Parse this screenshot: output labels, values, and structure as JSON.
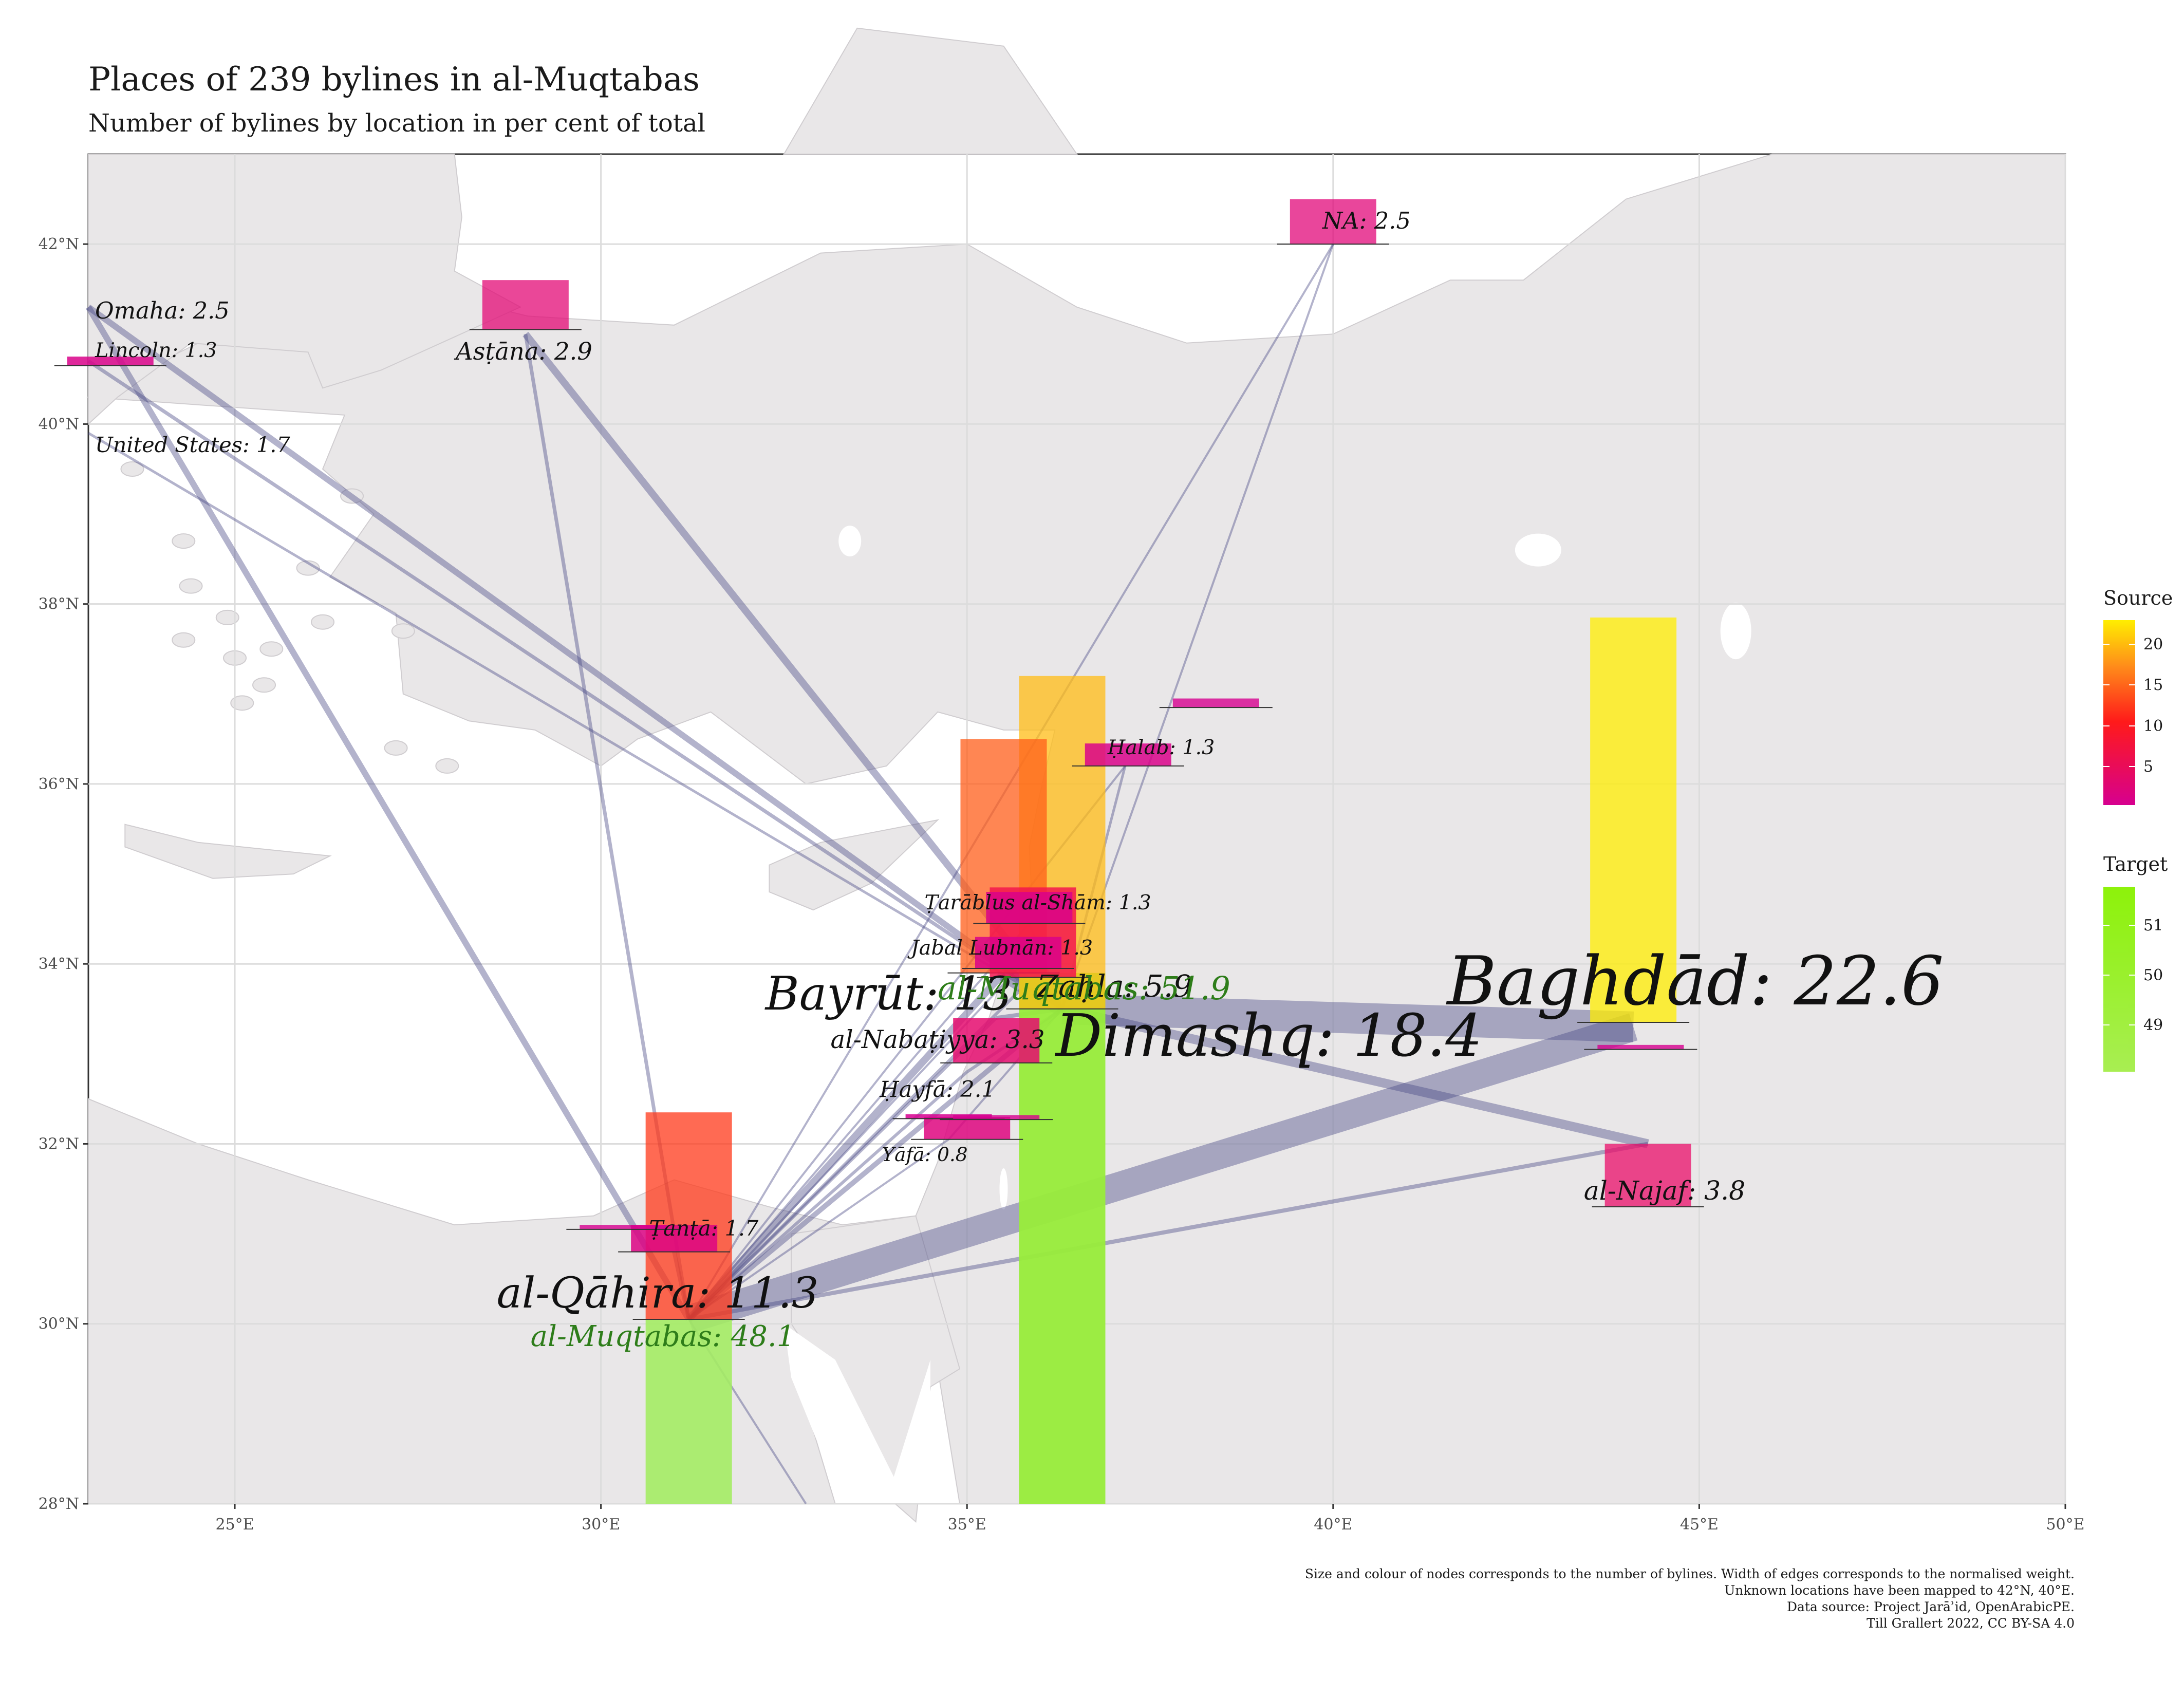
{
  "title": "Places of 239 bylines in al-Muqtabas",
  "subtitle": "Number of bylines by location in per cent of total",
  "caption": [
    "Size and colour of nodes corresponds to the number of bylines. Width of edges corresponds to the normalised weight.",
    "Unknown locations have been mapped to 42°N, 40°E.",
    "Data source: Project Jarāʾid, OpenArabicPE.",
    "Till Grallert 2022, CC BY-SA 4.0"
  ],
  "colors": {
    "land": "#e9e7e8",
    "sea": "#ffffff",
    "edge": "#4b4a86",
    "source_low": "#d6008f",
    "source_mid": "#ff1a1a",
    "source_high": "#ffee00",
    "target": "#8df20a"
  },
  "axes": {
    "x_ticks": [
      "25°E",
      "30°E",
      "35°E",
      "40°E",
      "45°E",
      "50°E"
    ],
    "y_ticks": [
      "28°N",
      "30°N",
      "32°N",
      "34°N",
      "36°N",
      "38°N",
      "40°N",
      "42°N"
    ],
    "xlim": [
      23,
      50
    ],
    "ylim": [
      28,
      43
    ]
  },
  "legend": {
    "source": {
      "title": "Source",
      "ticks": [
        "5",
        "10",
        "15",
        "20"
      ]
    },
    "target": {
      "title": "Target",
      "ticks": [
        "49",
        "50",
        "51"
      ]
    }
  },
  "chart_data": {
    "type": "map",
    "sources": [
      {
        "name": "Baghdād",
        "lon": 44.1,
        "lat": 33.3,
        "value": 22.6,
        "label": "Baghdād: 22.6"
      },
      {
        "name": "Dimashq",
        "lon": 36.3,
        "lat": 33.5,
        "value": 18.4,
        "label": "Dimashq: 18.4"
      },
      {
        "name": "Bayrūt",
        "lon": 35.5,
        "lat": 33.9,
        "value": 13,
        "label": "Bayrūt: 13"
      },
      {
        "name": "al-Qāhira",
        "lon": 31.2,
        "lat": 30.05,
        "value": 11.3,
        "label": "al-Qāhira: 11.3"
      },
      {
        "name": "Zaḥla",
        "lon": 35.9,
        "lat": 33.85,
        "value": 5.9,
        "label": "Zaḥla: 5.9"
      },
      {
        "name": "al-Najaf",
        "lon": 44.3,
        "lat": 32.0,
        "value": 3.8,
        "label": "al-Najaf: 3.8"
      },
      {
        "name": "al-Nabaṭiyya",
        "lon": 35.4,
        "lat": 33.4,
        "value": 3.3,
        "label": "al-Nabaṭiyya: 3.3"
      },
      {
        "name": "Asṭāna",
        "lon": 28.97,
        "lat": 41.0,
        "value": 2.9,
        "label": "Asṭāna: 2.9"
      },
      {
        "name": "NA",
        "lon": 40.0,
        "lat": 42.0,
        "value": 2.5,
        "label": "NA: 2.5"
      },
      {
        "name": "Omaha",
        "lon": 23.0,
        "lat": 41.3,
        "value": 2.5,
        "label": "Omaha: 2.5"
      },
      {
        "name": "Ḥayfā",
        "lon": 35.0,
        "lat": 32.8,
        "value": 2.1,
        "label": "Ḥayfā: 2.1"
      },
      {
        "name": "United States",
        "lon": 23.0,
        "lat": 39.9,
        "value": 1.7,
        "label": "United States: 1.7"
      },
      {
        "name": "Ṭanṭā",
        "lon": 31.0,
        "lat": 30.8,
        "value": 1.7,
        "label": "Ṭanṭā: 1.7"
      },
      {
        "name": "Ḥalab",
        "lon": 37.16,
        "lat": 36.2,
        "value": 1.3,
        "label": "Ḥalab: 1.3"
      },
      {
        "name": "Ṭarāblus al-Shām",
        "lon": 35.85,
        "lat": 34.45,
        "value": 1.3,
        "label": "Ṭarāblus al-Shām: 1.3"
      },
      {
        "name": "Jabal Lubnān",
        "lon": 35.7,
        "lat": 33.95,
        "value": 1.3,
        "label": "Jabal Lubnān: 1.3"
      },
      {
        "name": "Lincoln",
        "lon": 23.0,
        "lat": 40.7,
        "value": 1.3,
        "label": "Lincoln: 1.3"
      },
      {
        "name": "Yāfā",
        "lon": 34.75,
        "lat": 32.05,
        "value": 0.8,
        "label": "Yāfā: 0.8"
      }
    ],
    "targets": [
      {
        "name": "al-Muqtabas",
        "lon": 36.3,
        "lat": 33.5,
        "value": 51.9,
        "label": "al-Muqtabas: 51.9"
      },
      {
        "name": "al-Muqtabas",
        "lon": 31.2,
        "lat": 30.05,
        "value": 48.1,
        "label": "al-Muqtabas: 48.1"
      }
    ]
  }
}
